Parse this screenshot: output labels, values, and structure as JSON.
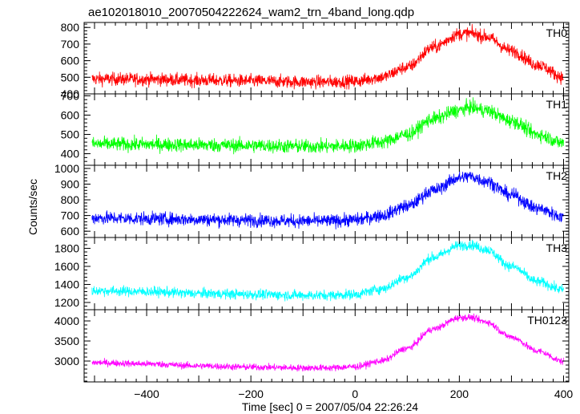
{
  "title": "ae102018010_20070504222624_wam2_trn_4band_long.qdp",
  "chart_data": {
    "type": "line",
    "title": "ae102018010_20070504222624_wam2_trn_4band_long.qdp",
    "xlabel": "Time [sec] 0 = 2007/05/04 22:26:24",
    "ylabel": "Counts/sec",
    "xlim": [
      -520,
      410
    ],
    "x_ticks": [
      -400,
      -200,
      0,
      200,
      400
    ],
    "x_tick_labels": [
      "−400",
      "−200",
      "0",
      "200",
      "400"
    ],
    "grid": false,
    "panels": [
      {
        "name": "TH0",
        "color": "#ff0000",
        "ylim": [
          400,
          830
        ],
        "yticks": [
          400,
          500,
          600,
          700,
          800
        ],
        "ytick_labels": [
          "400",
          "500",
          "600",
          "700",
          "800"
        ],
        "x": [
          -500,
          -400,
          -300,
          -200,
          -100,
          -50,
          0,
          50,
          100,
          150,
          200,
          220,
          250,
          300,
          350,
          400
        ],
        "y": [
          490,
          488,
          482,
          478,
          472,
          472,
          476,
          500,
          560,
          680,
          760,
          765,
          745,
          660,
          575,
          500
        ],
        "noise": 28
      },
      {
        "name": "TH1",
        "color": "#00ff00",
        "ylim": [
          340,
          710
        ],
        "yticks": [
          400,
          500,
          600,
          700
        ],
        "ytick_labels": [
          "400",
          "500",
          "600",
          "700"
        ],
        "x": [
          -500,
          -400,
          -300,
          -200,
          -100,
          -50,
          0,
          50,
          100,
          150,
          200,
          220,
          250,
          300,
          350,
          400
        ],
        "y": [
          450,
          448,
          445,
          442,
          438,
          438,
          442,
          460,
          500,
          580,
          625,
          640,
          625,
          570,
          500,
          455
        ],
        "noise": 26
      },
      {
        "name": "TH2",
        "color": "#0000ff",
        "ylim": [
          560,
          1020
        ],
        "yticks": [
          600,
          700,
          800,
          900,
          1000
        ],
        "ytick_labels": [
          "600",
          "700",
          "800",
          "900",
          "1000"
        ],
        "x": [
          -500,
          -400,
          -300,
          -200,
          -100,
          -50,
          0,
          50,
          100,
          150,
          200,
          220,
          250,
          300,
          350,
          400
        ],
        "y": [
          685,
          680,
          675,
          670,
          665,
          665,
          672,
          700,
          760,
          860,
          940,
          950,
          920,
          830,
          745,
          690
        ],
        "noise": 30
      },
      {
        "name": "TH3",
        "color": "#00ffff",
        "ylim": [
          1120,
          1920
        ],
        "yticks": [
          1200,
          1400,
          1600,
          1800
        ],
        "ytick_labels": [
          "1200",
          "1400",
          "1600",
          "1800"
        ],
        "x": [
          -500,
          -400,
          -300,
          -200,
          -100,
          -50,
          0,
          50,
          100,
          150,
          200,
          220,
          250,
          300,
          350,
          400
        ],
        "y": [
          1330,
          1320,
          1300,
          1290,
          1280,
          1280,
          1290,
          1350,
          1480,
          1700,
          1830,
          1840,
          1790,
          1600,
          1430,
          1340
        ],
        "noise": 40
      },
      {
        "name": "TH0123",
        "color": "#ff00ff",
        "ylim": [
          2480,
          4280
        ],
        "yticks": [
          3000,
          3500,
          4000
        ],
        "ytick_labels": [
          "3000",
          "3500",
          "4000"
        ],
        "x": [
          -500,
          -400,
          -300,
          -200,
          -100,
          -50,
          0,
          50,
          100,
          150,
          200,
          220,
          250,
          300,
          350,
          400
        ],
        "y": [
          2960,
          2930,
          2880,
          2850,
          2830,
          2830,
          2860,
          3000,
          3320,
          3800,
          4080,
          4090,
          3980,
          3600,
          3250,
          2990
        ],
        "noise": 60
      }
    ]
  }
}
